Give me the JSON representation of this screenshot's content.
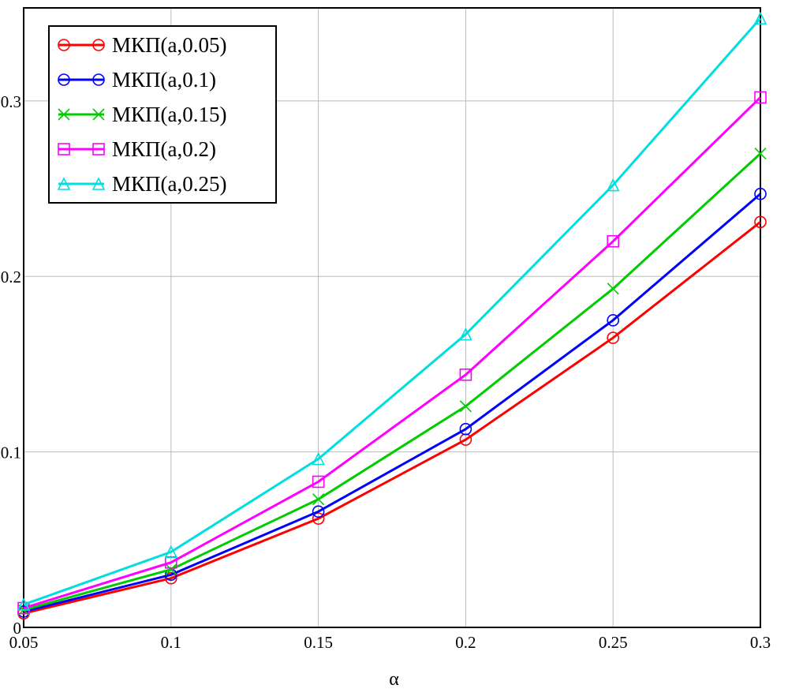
{
  "chart_data": {
    "type": "line",
    "title": "",
    "xlabel": "α",
    "ylabel": "",
    "xlim": [
      0.05,
      0.3
    ],
    "ylim": [
      0,
      0.353
    ],
    "xticks": [
      0.05,
      0.1,
      0.15,
      0.2,
      0.25,
      0.3
    ],
    "xtick_labels": [
      "0.05",
      "0.1",
      "0.15",
      "0.2",
      "0.25",
      "0.3"
    ],
    "yticks": [
      0,
      0.1,
      0.2,
      0.3
    ],
    "ytick_labels": [
      "0",
      "0.1",
      "0.2",
      "0.3"
    ],
    "grid": true,
    "legend_position": "top-left",
    "x": [
      0.05,
      0.1,
      0.15,
      0.2,
      0.25,
      0.3
    ],
    "series": [
      {
        "name": "МКП(a,0.05)",
        "color": "#ff0000",
        "marker": "circle",
        "values": [
          0.008,
          0.028,
          0.062,
          0.107,
          0.165,
          0.231
        ]
      },
      {
        "name": "МКП(a,0.1)",
        "color": "#0000ff",
        "marker": "circle",
        "values": [
          0.009,
          0.03,
          0.066,
          0.113,
          0.175,
          0.247
        ]
      },
      {
        "name": "МКП(a,0.15)",
        "color": "#00cc00",
        "marker": "x",
        "values": [
          0.01,
          0.033,
          0.073,
          0.126,
          0.193,
          0.27
        ]
      },
      {
        "name": "МКП(a,0.2)",
        "color": "#ff00ff",
        "marker": "square",
        "values": [
          0.011,
          0.037,
          0.083,
          0.144,
          0.22,
          0.302
        ]
      },
      {
        "name": "МКП(a,0.25)",
        "color": "#00dede",
        "marker": "triangle",
        "values": [
          0.013,
          0.043,
          0.096,
          0.167,
          0.252,
          0.347
        ]
      }
    ]
  }
}
